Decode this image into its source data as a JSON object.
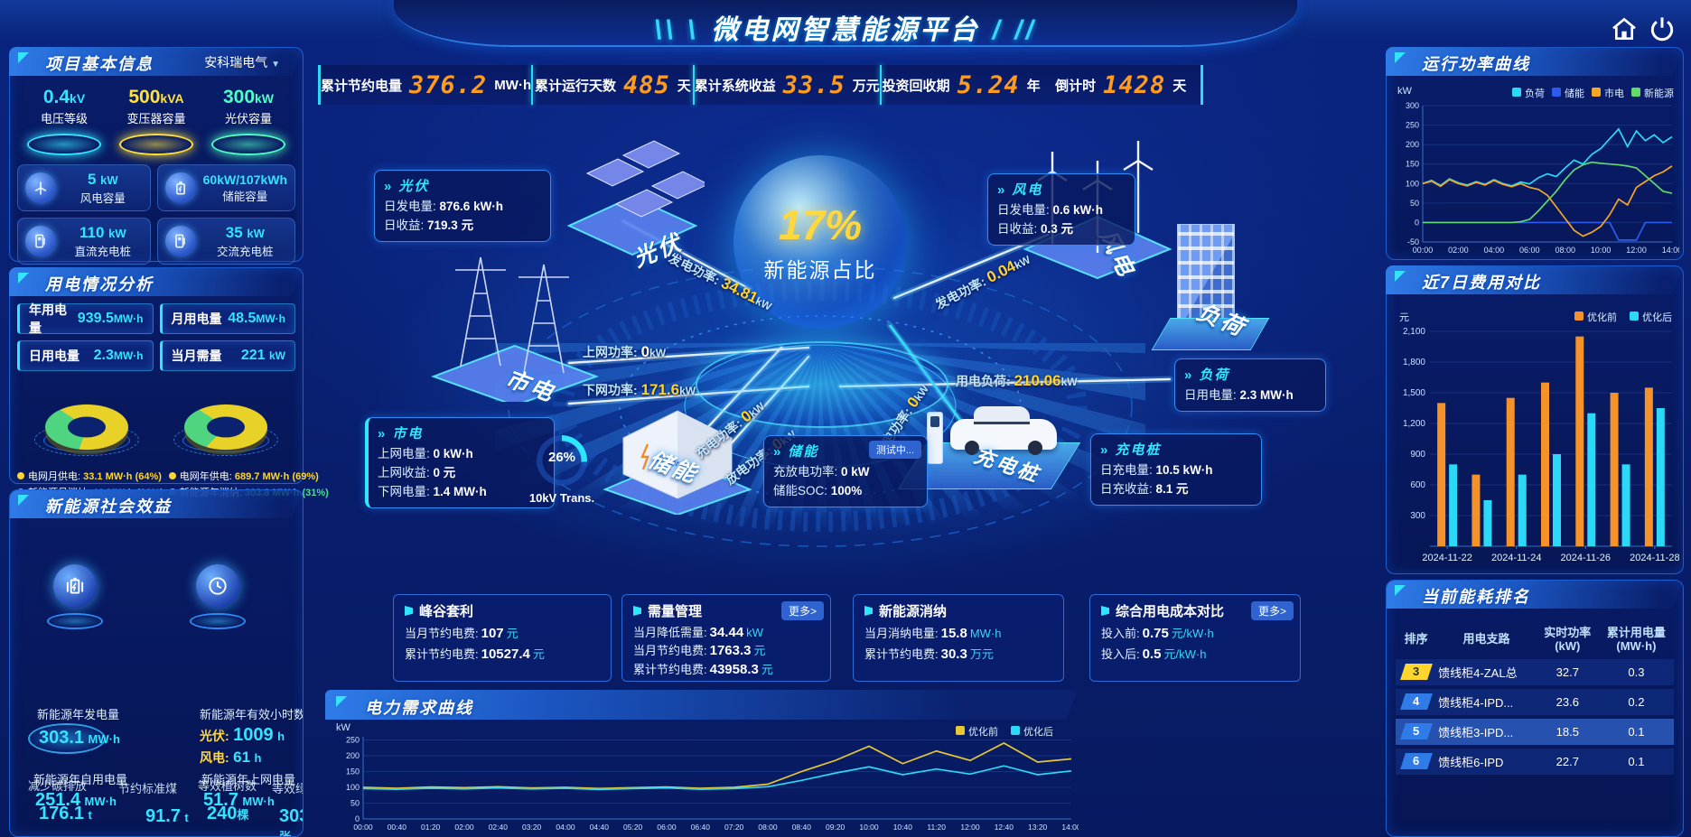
{
  "colors": {
    "accent": "#2ee6ff",
    "orange_number": "#ff9c1e",
    "yellow": "#ffd52e",
    "green": "#45e08c",
    "panel_border": "#1c5fd0",
    "bar_pre": "#f5922a",
    "bar_post": "#2bd9f7"
  },
  "icons": {
    "home": "home-icon",
    "power": "power-icon",
    "dropdown": "chevron-down-icon",
    "wind": "wind-turbine-icon",
    "battery": "battery-icon",
    "dc_charger": "dc-charger-icon",
    "ac_charger": "ac-charger-icon",
    "benefit_gen": "battery-lightning-icon",
    "benefit_hours": "clock-icon"
  },
  "header": {
    "title": "微电网智慧能源平台",
    "slash_left": "\\\\ \\",
    "slash_right": "/ //"
  },
  "topbar": [
    {
      "label": "累计节约电量",
      "value": "376.2",
      "unit": "MW·h"
    },
    {
      "label": "累计运行天数",
      "value": "485",
      "unit": "天"
    },
    {
      "label": "累计系统收益",
      "value": "33.5",
      "unit": "万元"
    },
    {
      "label": "投资回收期",
      "value": "5.24",
      "unit": "年"
    },
    {
      "label": "倒计时",
      "value": "1428",
      "unit": "天"
    }
  ],
  "project": {
    "title": "项目基本信息",
    "company": "安科瑞电气",
    "pads": [
      {
        "value": "0.4",
        "unit": "kV",
        "label": "电压等级",
        "color": "#35e3ff"
      },
      {
        "value": "500",
        "unit": "kVA",
        "label": "变压器容量",
        "color": "#ffe23a"
      },
      {
        "value": "300",
        "unit": "kW",
        "label": "光伏容量",
        "color": "#4dffc3"
      }
    ],
    "cards": [
      {
        "value": "5",
        "unit": "kW",
        "label": "风电容量"
      },
      {
        "value": "60kW/107kWh",
        "unit": "",
        "label": "储能容量"
      },
      {
        "value": "110",
        "unit": "kW",
        "label": "直流充电桩"
      },
      {
        "value": "35",
        "unit": "kW",
        "label": "交流充电桩"
      }
    ]
  },
  "usage": {
    "title": "用电情况分析",
    "stats": [
      {
        "label": "年用电量",
        "value": "939.5",
        "unit": "MW·h"
      },
      {
        "label": "月用电量",
        "value": "48.5",
        "unit": "MW·h"
      },
      {
        "label": "日用电量",
        "value": "2.3",
        "unit": "MW·h"
      },
      {
        "label": "当月需量",
        "value": "221",
        "unit": "kW"
      }
    ],
    "donut_month": {
      "grid_pct": 64,
      "renewable_pct": 36
    },
    "donut_year": {
      "grid_pct": 69,
      "renewable_pct": 31
    },
    "legends": [
      {
        "label": "电网月供电:",
        "value": "33.1 MW·h (64%)",
        "color": "#ffd52e"
      },
      {
        "label": "电网年供电:",
        "value": "689.7 MW·h (69%)",
        "color": "#ffd52e"
      },
      {
        "label": "新能源月消纳:",
        "value": "19 MW·h (36%)",
        "color": "#45e08c"
      },
      {
        "label": "新能源年消纳:",
        "value": "303.8 MW·h (31%)",
        "color": "#45e08c"
      }
    ]
  },
  "benefit": {
    "title": "新能源社会效益",
    "gen": {
      "label": "新能源年发电量",
      "value": "303.1",
      "unit": "MW·h"
    },
    "hours": {
      "label": "新能源年有效小时数",
      "pv_label": "光伏:",
      "pv_value": "1009",
      "pv_unit": "h",
      "wind_label": "风电:",
      "wind_value": "61",
      "wind_unit": "h"
    },
    "self_use": {
      "label": "新能源年自用电量",
      "value": "251.4",
      "unit": "MW·h"
    },
    "co2": {
      "label": "减少碳排放",
      "value": "176.1",
      "unit": "t"
    },
    "coal": {
      "label": "节约标准煤",
      "value": "91.7",
      "unit": "t"
    },
    "to_grid": {
      "label": "新能源年上网电量",
      "value": "51.7",
      "unit": "MW·h"
    },
    "trees": {
      "label": "等效植树数",
      "value": "240",
      "unit": "棵"
    },
    "certs": {
      "label": "等效绿证数",
      "value": "303",
      "unit": "张"
    }
  },
  "diagram": {
    "center": {
      "value": "17%",
      "label": "新能源占比"
    },
    "nodes": {
      "pv": "光伏",
      "wind": "风电",
      "grid": "市电",
      "load": "负荷",
      "storage": "储能",
      "charger": "充电桩"
    },
    "flows": {
      "pv": {
        "label": "发电功率:",
        "value": "34.81",
        "unit": "kW"
      },
      "wind": {
        "label": "发电功率:",
        "value": "0.04",
        "unit": "kW"
      },
      "to_grid": {
        "label": "上网功率:",
        "value": "0",
        "unit": "kW"
      },
      "from_grid": {
        "label": "下网功率:",
        "value": "171.6",
        "unit": "kW"
      },
      "load": {
        "label": "用电负荷:",
        "value": "210.06",
        "unit": "kW"
      },
      "storage_charge": {
        "label": "充电功率:",
        "value": "0",
        "unit": "kW"
      },
      "storage_discharge": {
        "label": "放电功率:",
        "value": "0",
        "unit": "kW"
      },
      "charger": {
        "label": "充电功率:",
        "value": "0",
        "unit": "kW"
      }
    },
    "boxes": {
      "pv": {
        "title": "光伏",
        "rows": [
          {
            "label": "日发电量:",
            "value": "876.6 kW·h"
          },
          {
            "label": "日收益:",
            "value": "719.3 元"
          }
        ]
      },
      "wind": {
        "title": "风电",
        "rows": [
          {
            "label": "日发电量:",
            "value": "0.6 kW·h"
          },
          {
            "label": "日收益:",
            "value": "0.3 元"
          }
        ]
      },
      "grid": {
        "title": "市电",
        "rows": [
          {
            "label": "上网电量:",
            "value": "0 kW·h"
          },
          {
            "label": "上网收益:",
            "value": "0 元"
          },
          {
            "label": "下网电量:",
            "value": "1.4 MW·h"
          }
        ]
      },
      "load": {
        "title": "负荷",
        "rows": [
          {
            "label": "日用电量:",
            "value": "2.3 MW·h"
          }
        ]
      },
      "storage": {
        "title": "储能",
        "badge": "测试中...",
        "rows": [
          {
            "label": "充放电功率:",
            "value": "0 kW"
          },
          {
            "label": "储能SOC:",
            "value": "100%"
          }
        ]
      },
      "charger": {
        "title": "充电桩",
        "rows": [
          {
            "label": "日充电量:",
            "value": "10.5 kW·h"
          },
          {
            "label": "日充收益:",
            "value": "8.1 元"
          }
        ]
      }
    },
    "transformer": {
      "pct": "26%",
      "label": "10kV Trans."
    }
  },
  "bottom_stats": [
    {
      "title": "峰谷套利",
      "rows": [
        {
          "label": "当月节约电费:",
          "value": "107",
          "unit": "元"
        },
        {
          "label": "累计节约电费:",
          "value": "10527.4",
          "unit": "元"
        }
      ]
    },
    {
      "title": "需量管理",
      "more": "更多>",
      "rows": [
        {
          "label": "当月降低需量:",
          "value": "34.44",
          "unit": "kW"
        },
        {
          "label": "当月节约电费:",
          "value": "1763.3",
          "unit": "元"
        },
        {
          "label": "累计节约电费:",
          "value": "43958.3",
          "unit": "元"
        }
      ]
    },
    {
      "title": "新能源消纳",
      "rows": [
        {
          "label": "当月消纳电量:",
          "value": "15.8",
          "unit": "MW·h"
        },
        {
          "label": "累计节约电费:",
          "value": "30.3",
          "unit": "万元"
        }
      ]
    },
    {
      "title": "综合用电成本对比",
      "more": "更多>",
      "rows": [
        {
          "label": "投入前:",
          "value": "0.75",
          "unit": "元/kW·h"
        },
        {
          "label": "投入后:",
          "value": "0.5",
          "unit": "元/kW·h"
        }
      ]
    }
  ],
  "demand": {
    "title": "电力需求曲线"
  },
  "right": {
    "power_title": "运行功率曲线",
    "cost_title": "近7日费用对比",
    "rank_title": "当前能耗排名"
  },
  "rank": {
    "headers": [
      {
        "l1": "排序",
        "l2": ""
      },
      {
        "l1": "用电支路",
        "l2": ""
      },
      {
        "l1": "实时功率",
        "l2": "(kW)"
      },
      {
        "l1": "累计用电量",
        "l2": "(MW·h)"
      }
    ],
    "rows": [
      {
        "rank": "3",
        "branch": "馈线柜4-ZAL总",
        "power": "32.7",
        "energy": "0.3",
        "gold": true,
        "highlight": false
      },
      {
        "rank": "4",
        "branch": "馈线柜4-IPD...",
        "power": "23.6",
        "energy": "0.2",
        "gold": false,
        "highlight": false
      },
      {
        "rank": "5",
        "branch": "馈线柜3-IPD...",
        "power": "18.5",
        "energy": "0.1",
        "gold": false,
        "highlight": true
      },
      {
        "rank": "6",
        "branch": "馈线柜6-IPD",
        "power": "22.7",
        "energy": "0.1",
        "gold": false,
        "highlight": false
      }
    ]
  },
  "chart_data": [
    {
      "id": "demand",
      "type": "line",
      "title": "电力需求曲线",
      "unit": "kW",
      "ylim": [
        0,
        260
      ],
      "yticks": [
        0,
        50,
        100,
        150,
        200,
        250
      ],
      "legend_position": "top-right",
      "grid": true,
      "xlabel_every": 1,
      "x": [
        "00:00",
        "00:40",
        "01:20",
        "02:00",
        "02:40",
        "03:20",
        "04:00",
        "04:40",
        "05:20",
        "06:00",
        "06:40",
        "07:20",
        "08:00",
        "08:40",
        "09:20",
        "10:00",
        "10:40",
        "11:20",
        "12:00",
        "12:40",
        "13:20",
        "14:00"
      ],
      "series": [
        {
          "name": "优化前",
          "color": "#e8c832",
          "values": [
            100,
            97,
            101,
            99,
            102,
            98,
            100,
            96,
            99,
            101,
            97,
            100,
            110,
            150,
            185,
            230,
            175,
            215,
            185,
            240,
            180,
            190
          ]
        },
        {
          "name": "优化后",
          "color": "#2bd9f7",
          "values": [
            96,
            94,
            97,
            95,
            98,
            95,
            97,
            93,
            96,
            98,
            94,
            96,
            102,
            122,
            145,
            165,
            140,
            158,
            142,
            168,
            140,
            152
          ]
        }
      ]
    },
    {
      "id": "power",
      "type": "line",
      "title": "运行功率曲线",
      "unit": "kW",
      "ylim": [
        -50,
        300
      ],
      "yticks": [
        -50,
        0,
        50,
        100,
        150,
        200,
        250,
        300
      ],
      "legend_position": "top-right",
      "grid": true,
      "xlabel_every": 4,
      "x": [
        "00:00",
        "00:30",
        "01:00",
        "01:30",
        "02:00",
        "02:30",
        "03:00",
        "03:30",
        "04:00",
        "04:30",
        "05:00",
        "05:30",
        "06:00",
        "06:30",
        "07:00",
        "07:30",
        "08:00",
        "08:30",
        "09:00",
        "09:30",
        "10:00",
        "10:30",
        "11:00",
        "11:30",
        "12:00",
        "12:30",
        "13:00",
        "13:30",
        "14:00"
      ],
      "series": [
        {
          "name": "负荷",
          "color": "#2bd9f7",
          "values": [
            100,
            108,
            95,
            112,
            102,
            96,
            105,
            98,
            110,
            100,
            94,
            104,
            99,
            115,
            125,
            118,
            140,
            160,
            150,
            175,
            190,
            215,
            240,
            195,
            235,
            210,
            225,
            205,
            220
          ]
        },
        {
          "name": "储能",
          "color": "#2d5bf0",
          "values": [
            0,
            0,
            0,
            0,
            0,
            0,
            0,
            0,
            0,
            0,
            0,
            0,
            0,
            0,
            0,
            0,
            0,
            0,
            0,
            0,
            0,
            0,
            -45,
            -45,
            -45,
            0,
            0,
            0,
            0
          ]
        },
        {
          "name": "市电",
          "color": "#f5a623",
          "values": [
            100,
            106,
            93,
            110,
            100,
            94,
            103,
            96,
            108,
            98,
            92,
            100,
            90,
            85,
            70,
            40,
            10,
            -20,
            -35,
            -25,
            -10,
            20,
            60,
            45,
            90,
            105,
            120,
            130,
            145
          ]
        },
        {
          "name": "新能源",
          "color": "#62d96a",
          "values": [
            0,
            0,
            0,
            0,
            0,
            0,
            0,
            0,
            0,
            0,
            0,
            2,
            8,
            30,
            55,
            80,
            110,
            135,
            148,
            155,
            152,
            150,
            148,
            145,
            140,
            120,
            100,
            80,
            75
          ]
        }
      ]
    },
    {
      "id": "cost",
      "type": "bar",
      "title": "近7日费用对比",
      "unit": "元",
      "ylim": [
        0,
        2100
      ],
      "yticks": [
        300,
        600,
        900,
        1200,
        1500,
        1800,
        2100
      ],
      "legend_position": "top-right",
      "grid": true,
      "categories": [
        "2024-11-22",
        "2024-11-23",
        "2024-11-24",
        "2024-11-25",
        "2024-11-26",
        "2024-11-27",
        "2024-11-28"
      ],
      "xtick_indices": [
        0,
        2,
        4,
        6
      ],
      "series": [
        {
          "name": "优化前",
          "color": "#f5922a",
          "values": [
            1400,
            700,
            1450,
            1600,
            2050,
            1500,
            1550
          ]
        },
        {
          "name": "优化后",
          "color": "#2bd9f7",
          "values": [
            800,
            450,
            700,
            900,
            1300,
            800,
            1350
          ]
        }
      ]
    }
  ]
}
